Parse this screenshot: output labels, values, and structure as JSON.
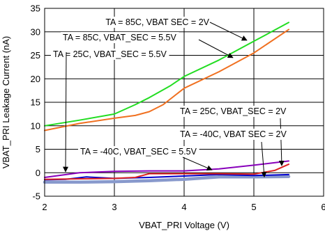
{
  "chart_data": {
    "type": "line",
    "title": "",
    "xlabel": "VBAT_PRI Voltage (V)",
    "ylabel": "VBAT_PRI Leakage Current (nA)",
    "xlim": [
      2,
      6
    ],
    "ylim": [
      -5,
      35
    ],
    "x_ticks": [
      2,
      3,
      4,
      5,
      6
    ],
    "y_ticks": [
      -5,
      0,
      5,
      10,
      15,
      20,
      25,
      30,
      35
    ],
    "grid": true,
    "legend": "none",
    "series": [
      {
        "name": "TA = 85C, VBAT_SEC = 2V",
        "color": "#22dd22",
        "points": [
          [
            2.0,
            10.0
          ],
          [
            2.5,
            11.2
          ],
          [
            3.0,
            12.5
          ],
          [
            3.3,
            14.5
          ],
          [
            3.5,
            16.0
          ],
          [
            3.8,
            18.5
          ],
          [
            4.0,
            20.5
          ],
          [
            4.5,
            24.0
          ],
          [
            5.0,
            28.0
          ],
          [
            5.5,
            32.0
          ]
        ]
      },
      {
        "name": "TA = 85C, VBAT_SEC = 5.5V",
        "color": "#f07020",
        "points": [
          [
            2.0,
            9.0
          ],
          [
            2.5,
            10.5
          ],
          [
            3.0,
            11.6
          ],
          [
            3.3,
            12.2
          ],
          [
            3.5,
            13.0
          ],
          [
            3.7,
            14.5
          ],
          [
            4.0,
            18.0
          ],
          [
            4.5,
            21.5
          ],
          [
            5.0,
            25.5
          ],
          [
            5.5,
            30.5
          ]
        ]
      },
      {
        "name": "TA = 25C, VBAT_SEC = 5.5V",
        "color": "#0000cc",
        "points": [
          [
            2.0,
            -1.5
          ],
          [
            2.3,
            -1.4
          ],
          [
            2.6,
            -0.9
          ],
          [
            3.0,
            -1.2
          ],
          [
            3.5,
            -1.0
          ],
          [
            4.0,
            -0.7
          ],
          [
            4.5,
            -0.4
          ],
          [
            5.0,
            -0.6
          ],
          [
            5.5,
            -0.4
          ]
        ]
      },
      {
        "name": "TA = 25C, VBAT_SEC = 2V",
        "color": "#dd2222",
        "points": [
          [
            2.0,
            -1.4
          ],
          [
            2.5,
            -1.3
          ],
          [
            3.0,
            -1.2
          ],
          [
            3.3,
            -1.0
          ],
          [
            3.5,
            -0.2
          ],
          [
            4.0,
            -0.2
          ],
          [
            4.5,
            -0.2
          ],
          [
            5.0,
            -0.3
          ],
          [
            5.3,
            0.5
          ],
          [
            5.5,
            1.8
          ]
        ]
      },
      {
        "name": "TA = -40C, VBAT_SEC = 2V",
        "color": "#8899cc",
        "points": [
          [
            2.0,
            -2.0
          ],
          [
            2.5,
            -2.0
          ],
          [
            3.0,
            -1.9
          ],
          [
            3.5,
            -1.7
          ],
          [
            4.0,
            -1.4
          ],
          [
            4.5,
            -0.9
          ],
          [
            5.0,
            -0.9
          ],
          [
            5.5,
            -0.8
          ]
        ]
      },
      {
        "name": "TA = -40C, VBAT_SEC = 5.5V",
        "color": "#8800bb",
        "points": [
          [
            2.0,
            -1.0
          ],
          [
            2.5,
            0.0
          ],
          [
            3.0,
            0.3
          ],
          [
            3.5,
            0.4
          ],
          [
            4.0,
            0.4
          ],
          [
            4.5,
            0.8
          ],
          [
            5.0,
            1.6
          ],
          [
            5.5,
            2.5
          ]
        ]
      }
    ],
    "annotations": [
      {
        "text": "TA = 85C, VBAT  SEC = 2V",
        "target": [
          4.9,
          28.2
        ]
      },
      {
        "text": "TA = 85C, VBAT_SEC = 5.5V",
        "target": [
          4.7,
          24.5
        ]
      },
      {
        "text": "TA = 25C, VBAT_SEC = 5.5V",
        "target": []
      },
      {
        "text": "TA = 25C, VBAT_SEC = 2V",
        "target": [
          5.4,
          1.5
        ]
      },
      {
        "text": "TA = -40C, VBAT  SEC = 2V",
        "target": [
          5.15,
          -0.9
        ]
      },
      {
        "text": "TA = -40C, VBAT_SEC = 5.5V",
        "target": [
          4.4,
          0.6
        ]
      },
      {
        "text": "",
        "target": [
          2.3,
          0.2
        ]
      }
    ]
  }
}
